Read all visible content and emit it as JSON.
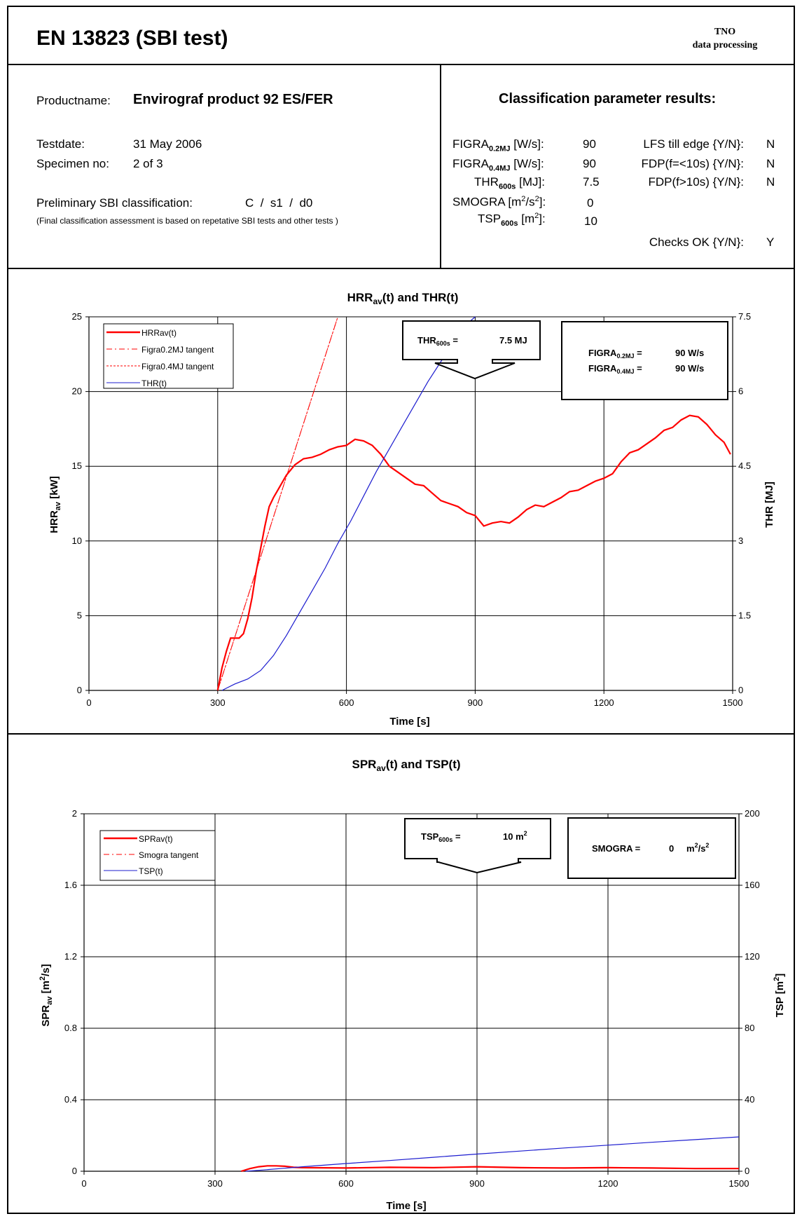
{
  "header": {
    "title": "EN 13823 (SBI test)",
    "tno_line1": "TNO",
    "tno_line2": "data processing"
  },
  "product": {
    "name_label": "Productname:",
    "name": "Envirograf product 92 ES/FER",
    "testdate_label": "Testdate:",
    "testdate": "31 May 2006",
    "specimen_label": "Specimen no:",
    "specimen": "2 of 3",
    "classification_label": "Preliminary SBI classification:",
    "classification": "C  /  s1  /  d0",
    "note": "(Final classification assessment is based on repetative SBI tests and other tests )"
  },
  "results": {
    "heading": "Classification parameter results:",
    "figra02_unit": "[W/s]:",
    "figra02": "90",
    "figra04_unit": "[W/s]:",
    "figra04": "90",
    "thr_unit": "[MJ]:",
    "thr": "7.5",
    "smogra_label": "SMOGRA",
    "smogra": "0",
    "tsp_label": "TSP",
    "tsp": "10",
    "lfs_label": "LFS till edge {Y/N}:",
    "lfs": "N",
    "fdp1_label": "FDP(f=<10s) {Y/N}:",
    "fdp1": "N",
    "fdp2_label": "FDP(f>10s) {Y/N}:",
    "fdp2": "N",
    "checks_label": "Checks OK {Y/N}:",
    "checks": "Y"
  },
  "chart_data": [
    {
      "type": "line",
      "title": "HRRav(t) and THR(t)",
      "xlabel": "Time [s]",
      "ylabel": "HRRav [kW]",
      "y2label": "THR [MJ]",
      "xlim": [
        0,
        1500
      ],
      "ylim": [
        0,
        25
      ],
      "y2lim": [
        0,
        7.5
      ],
      "xticks": [
        "0",
        "300",
        "600",
        "900",
        "1200",
        "1500"
      ],
      "yticks": [
        "0",
        "5",
        "10",
        "15",
        "20",
        "25"
      ],
      "y2ticks": [
        "0",
        "1.5",
        "3",
        "4.5",
        "6",
        "7.5"
      ],
      "grid": true,
      "legend": [
        "HRRav(t)",
        "Figra0.2MJ tangent",
        "Figra0.4MJ tangent",
        "THR(t)"
      ],
      "legend_position": "top-left",
      "colors": {
        "hrr": "#ff0000",
        "thr": "#1c1ccf"
      },
      "series": [
        {
          "name": "HRRav(t)",
          "x": [
            300,
            310,
            320,
            330,
            340,
            350,
            360,
            370,
            380,
            390,
            400,
            410,
            420,
            430,
            440,
            450,
            460,
            480,
            500,
            520,
            540,
            560,
            580,
            600,
            620,
            640,
            660,
            680,
            700,
            720,
            740,
            760,
            780,
            800,
            820,
            840,
            860,
            880,
            900,
            920,
            940,
            960,
            980,
            1000,
            1020,
            1040,
            1060,
            1080,
            1100,
            1120,
            1140,
            1160,
            1180,
            1200,
            1220,
            1240,
            1260,
            1280,
            1300,
            1320,
            1340,
            1360,
            1380,
            1400,
            1420,
            1440,
            1460,
            1480,
            1495
          ],
          "y": [
            0,
            1.5,
            2.6,
            3.5,
            3.5,
            3.5,
            3.8,
            4.8,
            6.2,
            8.0,
            9.5,
            11.0,
            12.3,
            12.9,
            13.4,
            13.9,
            14.4,
            15.1,
            15.5,
            15.6,
            15.8,
            16.1,
            16.3,
            16.4,
            16.8,
            16.7,
            16.4,
            15.8,
            15.0,
            14.6,
            14.2,
            13.8,
            13.7,
            13.2,
            12.7,
            12.5,
            12.3,
            11.9,
            11.7,
            11.0,
            11.2,
            11.3,
            11.2,
            11.6,
            12.1,
            12.4,
            12.3,
            12.6,
            12.9,
            13.3,
            13.4,
            13.7,
            14.0,
            14.2,
            14.5,
            15.3,
            15.9,
            16.1,
            16.5,
            16.9,
            17.4,
            17.6,
            18.1,
            18.4,
            18.3,
            17.8,
            17.1,
            16.6,
            15.8
          ]
        },
        {
          "name": "Figra0.2MJ tangent",
          "x": [
            300,
            580
          ],
          "y": [
            0,
            25
          ]
        },
        {
          "name": "Figra0.4MJ tangent",
          "x": [
            300,
            580
          ],
          "y": [
            0,
            25
          ]
        },
        {
          "name": "THR(t)",
          "x": [
            310,
            340,
            370,
            400,
            430,
            460,
            490,
            520,
            550,
            580,
            610,
            640,
            670,
            700,
            730,
            760,
            790,
            820,
            850,
            880,
            900
          ],
          "y": [
            0,
            0.13,
            0.23,
            0.4,
            0.7,
            1.1,
            1.55,
            2.0,
            2.45,
            2.95,
            3.4,
            3.9,
            4.4,
            4.85,
            5.3,
            5.75,
            6.2,
            6.6,
            7.0,
            7.35,
            7.5
          ]
        }
      ],
      "annotations": [
        {
          "label": "THR600s =",
          "value": "7.5 MJ"
        },
        {
          "label": "FIGRA0.2MJ =",
          "value": "90  W/s"
        },
        {
          "label": "FIGRA0.4MJ =",
          "value": "90  W/s"
        }
      ]
    },
    {
      "type": "line",
      "title": "SPRav(t) and TSP(t)",
      "xlabel": "Time [s]",
      "ylabel": "SPRav [m2/s]",
      "y2label": "TSP [m2]",
      "xlim": [
        0,
        1500
      ],
      "ylim": [
        0,
        2
      ],
      "y2lim": [
        0,
        200
      ],
      "xticks": [
        "0",
        "300",
        "600",
        "900",
        "1200",
        "1500"
      ],
      "yticks": [
        "0",
        "0.4",
        "0.8",
        "1.2",
        "1.6",
        "2"
      ],
      "y2ticks": [
        "0",
        "40",
        "80",
        "120",
        "160",
        "200"
      ],
      "grid": true,
      "legend": [
        "SPRav(t)",
        "Smogra tangent",
        "TSP(t)"
      ],
      "legend_position": "top-left",
      "series": [
        {
          "name": "SPRav(t)",
          "x": [
            360,
            380,
            400,
            420,
            440,
            460,
            480,
            500,
            600,
            700,
            800,
            900,
            1000,
            1100,
            1200,
            1300,
            1400,
            1500
          ],
          "y": [
            0,
            0.015,
            0.025,
            0.03,
            0.03,
            0.028,
            0.022,
            0.02,
            0.018,
            0.022,
            0.02,
            0.025,
            0.02,
            0.018,
            0.02,
            0.018,
            0.015,
            0.015
          ]
        },
        {
          "name": "Smogra tangent",
          "x": [],
          "y": []
        },
        {
          "name": "TSP(t)",
          "x": [
            370,
            400,
            450,
            500,
            600,
            700,
            800,
            900,
            1000,
            1100,
            1200,
            1300,
            1400,
            1500
          ],
          "y": [
            0,
            0.5,
            1.5,
            2.5,
            4.3,
            6.0,
            7.8,
            9.6,
            11.3,
            13.0,
            14.6,
            16.2,
            17.7,
            19.2
          ]
        }
      ],
      "annotations": [
        {
          "label": "TSP600s =",
          "value": "10  m2"
        },
        {
          "label": "SMOGRA =",
          "value": "0    m2/s2"
        }
      ]
    }
  ],
  "chart_text": {
    "c1_title_main": "HRR",
    "c1_title_sub": "av",
    "c1_title_rest": "(t) and THR(t)",
    "c1_xlabel": "Time [s]",
    "c1_ylabel_main": "HRR",
    "c1_ylabel_sub": "av",
    "c1_ylabel_rest": " [kW]",
    "c1_y2label": "THR [MJ]",
    "c1_leg1": "HRRav(t)",
    "c1_leg2": "Figra0.2MJ tangent",
    "c1_leg3": "Figra0.4MJ tangent",
    "c1_leg4": "THR(t)",
    "c1_box1_label": "THR",
    "c1_box1_sub": "600s",
    "c1_box1_eq": " =",
    "c1_box1_val": "7.5 MJ",
    "c1_box2_l1": "FIGRA",
    "c1_box2_l1sub": "0.2MJ",
    "c1_box2_l2sub": "0.4MJ",
    "c1_box2_eq": " =",
    "c1_box2_v1": "90   W/s",
    "c1_box2_v2": "90   W/s",
    "c2_title_main": "SPR",
    "c2_title_sub": "av",
    "c2_title_rest": "(t) and TSP(t)",
    "c2_xlabel": "Time [s]",
    "c2_ylabel_main": "SPR",
    "c2_ylabel_sub": "av",
    "c2_ylabel_rest": " [m",
    "c2_ylabel_sup": "2",
    "c2_ylabel_end": "/s]",
    "c2_y2label": "TSP [m",
    "c2_y2label_sup": "2",
    "c2_y2label_end": "]",
    "c2_leg1": "SPRav(t)",
    "c2_leg2": "Smogra tangent",
    "c2_leg3": "TSP(t)",
    "c2_box1_label": "TSP",
    "c2_box1_sub": "600s",
    "c2_box1_eq": " =",
    "c2_box1_val": "10  m",
    "c2_box1_sup": "2",
    "c2_box2_label": "SMOGRA =",
    "c2_box2_val": "0",
    "c2_box2_unit": "m",
    "c2_box2_sup1": "2",
    "c2_box2_mid": "/s",
    "c2_box2_sup2": "2"
  }
}
